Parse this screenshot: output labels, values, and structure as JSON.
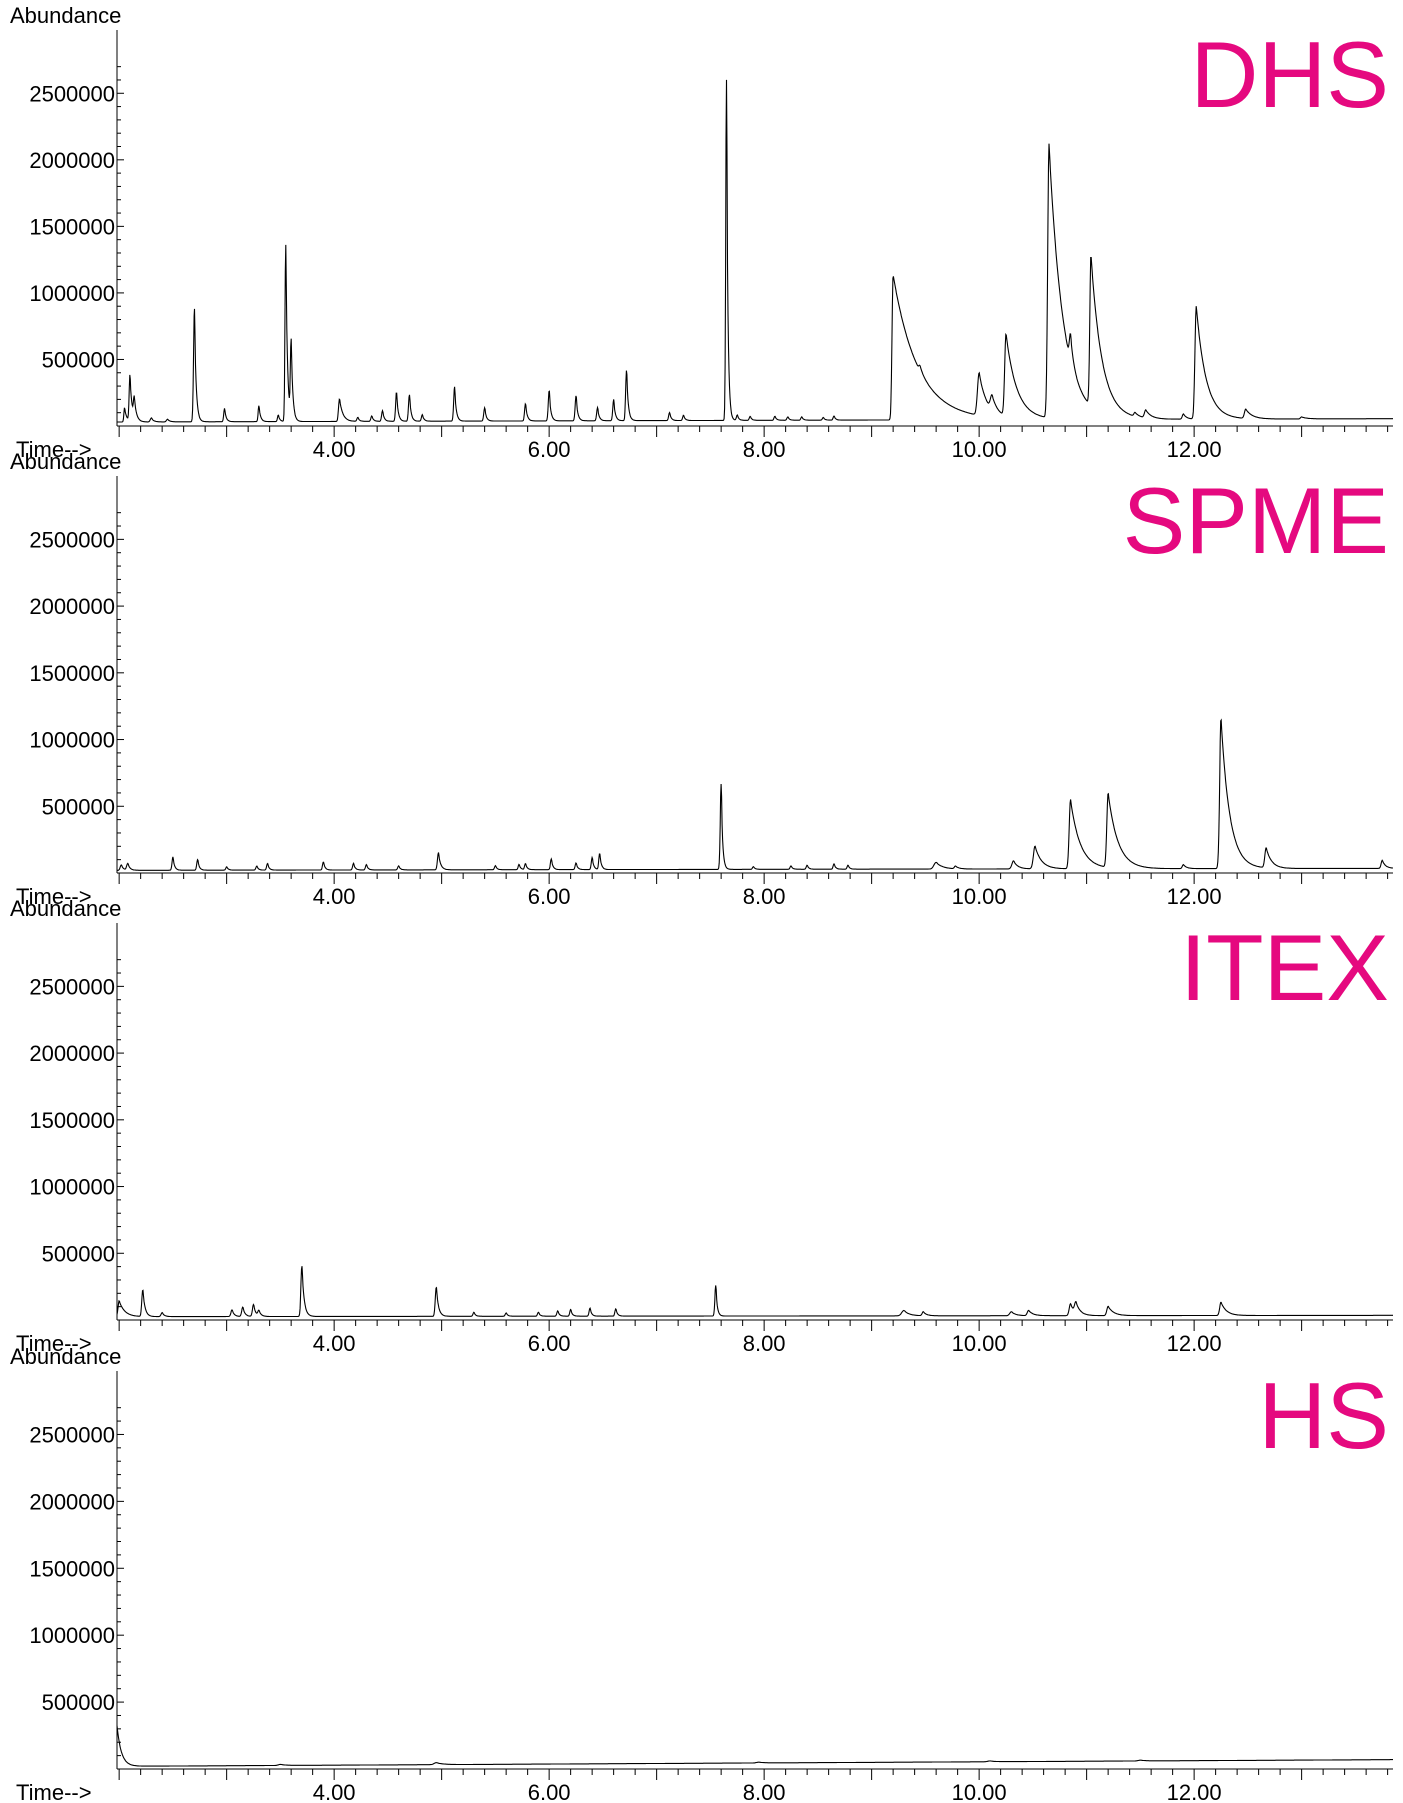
{
  "colors": {
    "trace": "#000000",
    "axis": "#000000",
    "panel_label": "#e5097f"
  },
  "chart_data": [
    {
      "type": "line",
      "title": "DHS",
      "ylabel": "Abundance",
      "xlabel": "Time-->",
      "xlim": [
        1.98,
        13.85
      ],
      "ylim": [
        0,
        2750000
      ],
      "xticks": [
        "4.00",
        "6.00",
        "8.00",
        "10.00",
        "12.00"
      ],
      "xtick_values": [
        4,
        6,
        8,
        10,
        12
      ],
      "yticks": [
        "500000",
        "1000000",
        "1500000",
        "2000000",
        "2500000"
      ],
      "ytick_values": [
        500000,
        1000000,
        1500000,
        2000000,
        2500000
      ],
      "baseline": 30000,
      "baseline_end": 55000,
      "peaks": [
        [
          2.05,
          110000,
          0.006,
          0.02
        ],
        [
          2.1,
          350000,
          0.007,
          0.02
        ],
        [
          2.14,
          150000,
          0.007,
          0.02
        ],
        [
          2.3,
          30000,
          0.01,
          0.02
        ],
        [
          2.45,
          20000,
          0.01,
          0.02
        ],
        [
          2.7,
          860000,
          0.008,
          0.015
        ],
        [
          2.98,
          100000,
          0.007,
          0.015
        ],
        [
          3.3,
          120000,
          0.007,
          0.015
        ],
        [
          3.48,
          50000,
          0.007,
          0.015
        ],
        [
          3.55,
          1330000,
          0.007,
          0.015
        ],
        [
          3.6,
          580000,
          0.007,
          0.015
        ],
        [
          4.05,
          170000,
          0.009,
          0.03
        ],
        [
          4.22,
          30000,
          0.008,
          0.015
        ],
        [
          4.35,
          40000,
          0.008,
          0.015
        ],
        [
          4.45,
          80000,
          0.008,
          0.015
        ],
        [
          4.58,
          220000,
          0.008,
          0.015
        ],
        [
          4.7,
          200000,
          0.008,
          0.015
        ],
        [
          4.82,
          50000,
          0.008,
          0.015
        ],
        [
          5.12,
          260000,
          0.008,
          0.015
        ],
        [
          5.4,
          100000,
          0.008,
          0.015
        ],
        [
          5.78,
          130000,
          0.008,
          0.015
        ],
        [
          6.0,
          230000,
          0.008,
          0.015
        ],
        [
          6.25,
          190000,
          0.008,
          0.015
        ],
        [
          6.45,
          100000,
          0.008,
          0.015
        ],
        [
          6.6,
          160000,
          0.008,
          0.015
        ],
        [
          6.72,
          380000,
          0.008,
          0.015
        ],
        [
          7.12,
          60000,
          0.008,
          0.015
        ],
        [
          7.25,
          40000,
          0.008,
          0.015
        ],
        [
          7.65,
          2560000,
          0.007,
          0.012
        ],
        [
          7.75,
          40000,
          0.008,
          0.015
        ],
        [
          7.87,
          30000,
          0.008,
          0.015
        ],
        [
          8.1,
          30000,
          0.008,
          0.015
        ],
        [
          8.22,
          25000,
          0.008,
          0.015
        ],
        [
          8.35,
          25000,
          0.008,
          0.015
        ],
        [
          8.55,
          20000,
          0.008,
          0.015
        ],
        [
          8.65,
          30000,
          0.008,
          0.015
        ],
        [
          9.2,
          1090000,
          0.01,
          0.23
        ],
        [
          9.45,
          40000,
          0.01,
          0.03
        ],
        [
          10.0,
          320000,
          0.015,
          0.07
        ],
        [
          10.12,
          110000,
          0.015,
          0.05
        ],
        [
          10.25,
          620000,
          0.012,
          0.1
        ],
        [
          10.65,
          2060000,
          0.012,
          0.13
        ],
        [
          10.85,
          200000,
          0.01,
          0.03
        ],
        [
          11.04,
          1140000,
          0.01,
          0.1
        ],
        [
          11.45,
          30000,
          0.01,
          0.04
        ],
        [
          11.55,
          60000,
          0.012,
          0.05
        ],
        [
          11.9,
          40000,
          0.01,
          0.03
        ],
        [
          12.02,
          850000,
          0.012,
          0.09
        ],
        [
          12.48,
          70000,
          0.012,
          0.06
        ],
        [
          13.0,
          15000,
          0.01,
          0.05
        ]
      ]
    },
    {
      "type": "line",
      "title": "SPME",
      "ylabel": "Abundance",
      "xlabel": "Time-->",
      "xlim": [
        1.98,
        13.85
      ],
      "ylim": [
        0,
        2750000
      ],
      "xticks": [
        "4.00",
        "6.00",
        "8.00",
        "10.00",
        "12.00"
      ],
      "xtick_values": [
        4,
        6,
        8,
        10,
        12
      ],
      "yticks": [
        "500000",
        "1000000",
        "1500000",
        "2000000",
        "2500000"
      ],
      "ytick_values": [
        500000,
        1000000,
        1500000,
        2000000,
        2500000
      ],
      "baseline": 20000,
      "baseline_end": 35000,
      "peaks": [
        [
          2.02,
          40000,
          0.01,
          0.02
        ],
        [
          2.08,
          50000,
          0.01,
          0.02
        ],
        [
          2.5,
          100000,
          0.008,
          0.015
        ],
        [
          2.73,
          80000,
          0.008,
          0.015
        ],
        [
          3.0,
          25000,
          0.008,
          0.015
        ],
        [
          3.28,
          30000,
          0.008,
          0.015
        ],
        [
          3.38,
          50000,
          0.008,
          0.015
        ],
        [
          3.9,
          60000,
          0.008,
          0.015
        ],
        [
          4.18,
          50000,
          0.008,
          0.015
        ],
        [
          4.3,
          40000,
          0.008,
          0.015
        ],
        [
          4.6,
          30000,
          0.008,
          0.015
        ],
        [
          4.97,
          130000,
          0.009,
          0.02
        ],
        [
          5.5,
          30000,
          0.008,
          0.015
        ],
        [
          5.72,
          40000,
          0.008,
          0.015
        ],
        [
          5.78,
          45000,
          0.008,
          0.015
        ],
        [
          6.02,
          80000,
          0.008,
          0.015
        ],
        [
          6.25,
          50000,
          0.008,
          0.015
        ],
        [
          6.4,
          90000,
          0.008,
          0.015
        ],
        [
          6.47,
          120000,
          0.008,
          0.015
        ],
        [
          7.6,
          640000,
          0.008,
          0.013
        ],
        [
          7.9,
          20000,
          0.008,
          0.015
        ],
        [
          8.25,
          25000,
          0.008,
          0.015
        ],
        [
          8.4,
          30000,
          0.008,
          0.015
        ],
        [
          8.65,
          40000,
          0.008,
          0.015
        ],
        [
          8.78,
          30000,
          0.008,
          0.015
        ],
        [
          9.6,
          50000,
          0.02,
          0.06
        ],
        [
          9.78,
          20000,
          0.01,
          0.03
        ],
        [
          10.32,
          60000,
          0.015,
          0.04
        ],
        [
          10.52,
          170000,
          0.015,
          0.06
        ],
        [
          10.85,
          520000,
          0.012,
          0.09
        ],
        [
          11.2,
          560000,
          0.012,
          0.09
        ],
        [
          11.9,
          30000,
          0.01,
          0.03
        ],
        [
          12.25,
          1130000,
          0.012,
          0.08
        ],
        [
          12.67,
          150000,
          0.012,
          0.05
        ],
        [
          13.75,
          60000,
          0.01,
          0.03
        ]
      ]
    },
    {
      "type": "line",
      "title": "ITEX",
      "ylabel": "Abundance",
      "xlabel": "Time-->",
      "xlim": [
        1.98,
        13.85
      ],
      "ylim": [
        0,
        2750000
      ],
      "xticks": [
        "4.00",
        "6.00",
        "8.00",
        "10.00",
        "12.00"
      ],
      "xtick_values": [
        4,
        6,
        8,
        10,
        12
      ],
      "yticks": [
        "500000",
        "1000000",
        "1500000",
        "2000000",
        "2500000"
      ],
      "ytick_values": [
        500000,
        1000000,
        1500000,
        2000000,
        2500000
      ],
      "baseline": 25000,
      "baseline_end": 35000,
      "peaks": [
        [
          2.0,
          120000,
          0.01,
          0.05
        ],
        [
          2.22,
          200000,
          0.009,
          0.02
        ],
        [
          2.4,
          30000,
          0.01,
          0.02
        ],
        [
          3.05,
          50000,
          0.01,
          0.02
        ],
        [
          3.15,
          70000,
          0.01,
          0.02
        ],
        [
          3.25,
          90000,
          0.01,
          0.02
        ],
        [
          3.3,
          40000,
          0.01,
          0.02
        ],
        [
          3.7,
          380000,
          0.009,
          0.02
        ],
        [
          4.95,
          220000,
          0.009,
          0.02
        ],
        [
          5.3,
          30000,
          0.008,
          0.015
        ],
        [
          5.6,
          25000,
          0.008,
          0.015
        ],
        [
          5.9,
          30000,
          0.008,
          0.015
        ],
        [
          6.08,
          40000,
          0.008,
          0.015
        ],
        [
          6.2,
          50000,
          0.008,
          0.015
        ],
        [
          6.38,
          60000,
          0.008,
          0.015
        ],
        [
          6.62,
          55000,
          0.008,
          0.015
        ],
        [
          7.55,
          230000,
          0.008,
          0.013
        ],
        [
          9.3,
          40000,
          0.02,
          0.05
        ],
        [
          9.48,
          30000,
          0.01,
          0.03
        ],
        [
          10.3,
          30000,
          0.015,
          0.04
        ],
        [
          10.46,
          40000,
          0.012,
          0.04
        ],
        [
          10.85,
          90000,
          0.012,
          0.04
        ],
        [
          10.9,
          80000,
          0.012,
          0.04
        ],
        [
          11.2,
          70000,
          0.012,
          0.05
        ],
        [
          12.25,
          100000,
          0.012,
          0.05
        ]
      ]
    },
    {
      "type": "line",
      "title": "HS",
      "ylabel": "Abundance",
      "xlabel": "Time-->",
      "xlim": [
        1.98,
        13.85
      ],
      "ylim": [
        0,
        2750000
      ],
      "xticks": [
        "4.00",
        "6.00",
        "8.00",
        "10.00",
        "12.00"
      ],
      "xtick_values": [
        4,
        6,
        8,
        10,
        12
      ],
      "yticks": [
        "500000",
        "1000000",
        "1500000",
        "2000000",
        "2500000"
      ],
      "ytick_values": [
        500000,
        1000000,
        1500000,
        2000000,
        2500000
      ],
      "baseline": 20000,
      "baseline_end": 70000,
      "peaks": [
        [
          1.96,
          500000,
          0.01,
          0.04
        ],
        [
          3.5,
          8000,
          0.02,
          0.05
        ],
        [
          4.95,
          15000,
          0.02,
          0.06
        ],
        [
          7.95,
          6000,
          0.02,
          0.05
        ],
        [
          10.1,
          6000,
          0.02,
          0.05
        ],
        [
          11.5,
          6000,
          0.02,
          0.05
        ]
      ]
    }
  ]
}
